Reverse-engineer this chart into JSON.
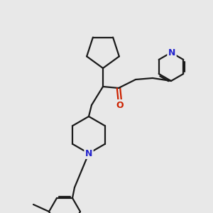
{
  "background_color": "#e8e8e8",
  "bond_color": "#1a1a1a",
  "nitrogen_color": "#2222cc",
  "oxygen_color": "#cc2200",
  "line_width": 1.6,
  "figsize": [
    3.0,
    3.0
  ],
  "dpi": 100,
  "xlim": [
    0,
    300
  ],
  "ylim": [
    0,
    300
  ]
}
